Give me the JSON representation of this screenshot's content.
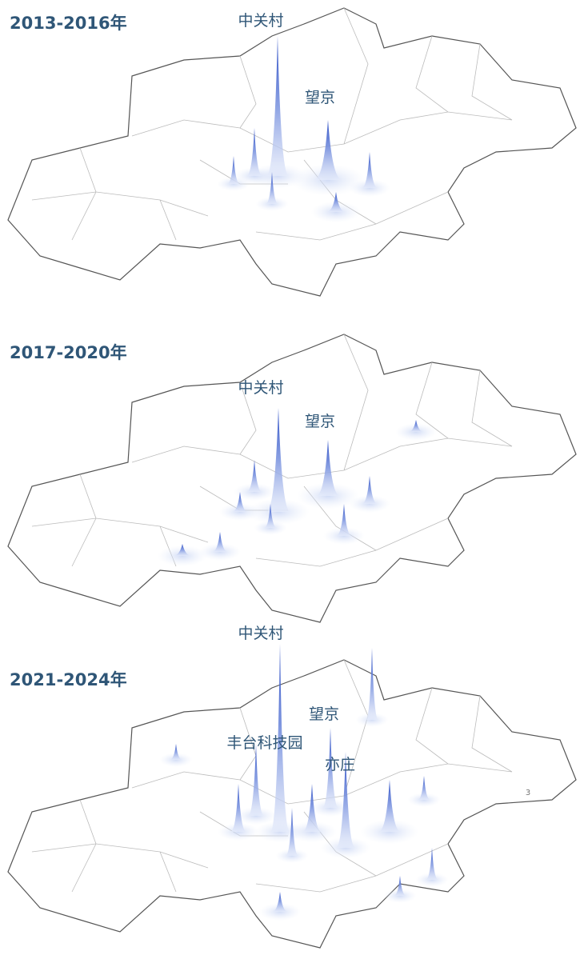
{
  "panels": [
    {
      "title": "2013-2016年",
      "labels": [
        "中关村",
        "望京"
      ]
    },
    {
      "title": "2017-2020年",
      "labels": [
        "中关村",
        "望京"
      ]
    },
    {
      "title": "2021-2024年",
      "labels": [
        "中关村",
        "望京",
        "丰台科技园",
        "亦庄"
      ]
    }
  ],
  "page_mark": "3"
}
